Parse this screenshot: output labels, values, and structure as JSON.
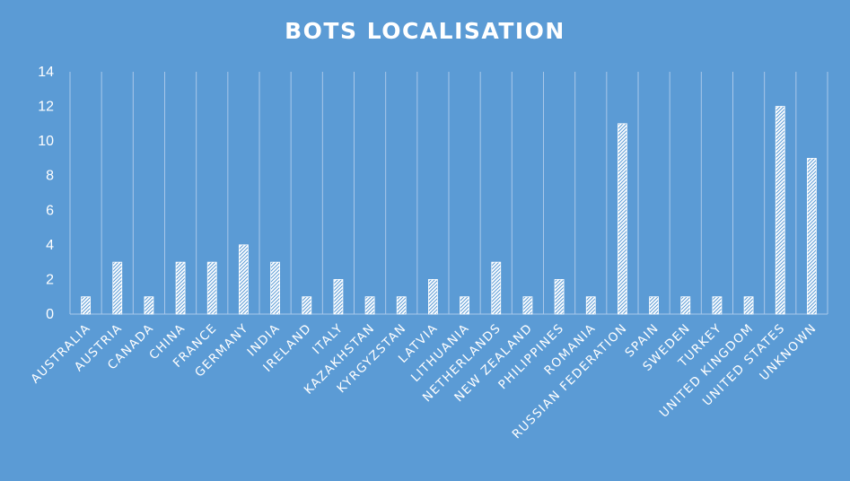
{
  "colors": {
    "background": "#5b9bd5",
    "bar_fill": "#ffffff",
    "bar_hatch": "#5b9bd5",
    "grid": "#a9c8ea",
    "text": "#ffffff"
  },
  "chart_data": {
    "type": "bar",
    "title": "BOTS LOCALISATION",
    "xlabel": "",
    "ylabel": "",
    "ylim": [
      0,
      14
    ],
    "yticks": [
      0,
      2,
      4,
      6,
      8,
      10,
      12,
      14
    ],
    "grid": "vertical",
    "legend": "none",
    "categories": [
      "AUSTRALIA",
      "AUSTRIA",
      "CANADA",
      "CHINA",
      "FRANCE",
      "GERMANY",
      "INDIA",
      "IRELAND",
      "ITALY",
      "KAZAKHSTAN",
      "KYRGYZSTAN",
      "LATVIA",
      "LITHUANIA",
      "NETHERLANDS",
      "NEW ZEALAND",
      "PHILIPPINES",
      "ROMANIA",
      "RUSSIAN FEDERATION",
      "SPAIN",
      "SWEDEN",
      "TURKEY",
      "UNITED KINGDOM",
      "UNITED STATES",
      "UNKNOWN"
    ],
    "values": [
      1,
      3,
      1,
      3,
      3,
      4,
      3,
      1,
      2,
      1,
      1,
      2,
      1,
      3,
      1,
      2,
      1,
      11,
      1,
      1,
      1,
      1,
      12,
      9
    ]
  }
}
